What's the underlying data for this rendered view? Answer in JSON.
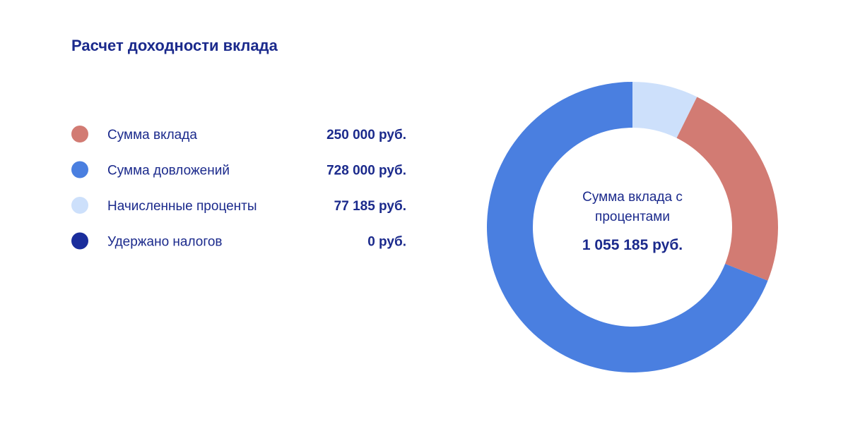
{
  "chart_data": {
    "type": "pie",
    "donut": true,
    "title": "Расчет доходности вклада",
    "categories": [
      "Сумма вклада",
      "Сумма довложений",
      "Начисленные проценты",
      "Удержано налогов"
    ],
    "values": [
      250000,
      728000,
      77185,
      0
    ],
    "value_labels": [
      "250 000 руб.",
      "728 000 руб.",
      "77 185 руб.",
      "0 руб."
    ],
    "colors": [
      "#d27b73",
      "#4a7fe0",
      "#cde0fb",
      "#1a2d9c"
    ],
    "center_title": "Сумма вклада с процентами",
    "center_value": "1 055 185 руб."
  }
}
